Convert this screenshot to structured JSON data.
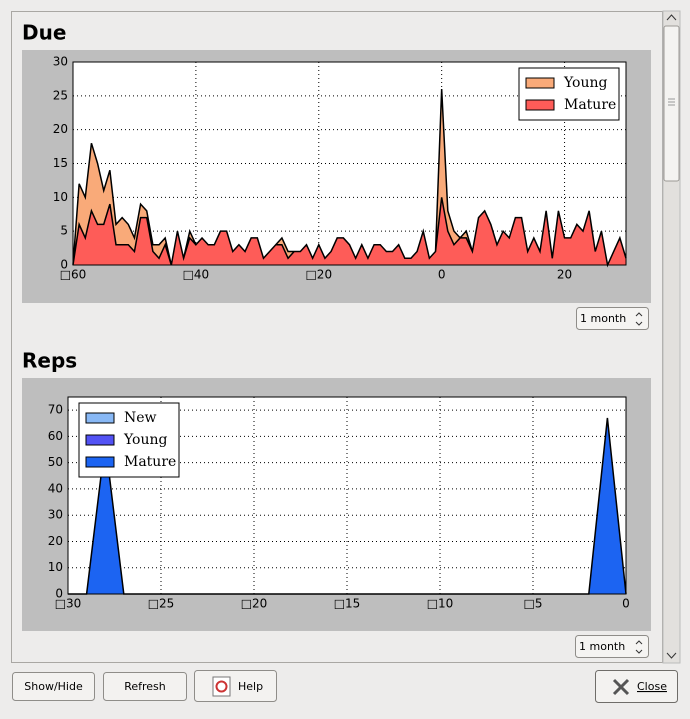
{
  "chart_data": [
    {
      "type": "area",
      "stacked": true,
      "title": "Due",
      "legend": "upper right",
      "grid": true,
      "x": [
        -60,
        -59,
        -58,
        -57,
        -56,
        -55,
        -54,
        -53,
        -52,
        -51,
        -50,
        -49,
        -48,
        -47,
        -46,
        -45,
        -44,
        -43,
        -42,
        -41,
        -40,
        -39,
        -38,
        -37,
        -36,
        -35,
        -34,
        -33,
        -32,
        -31,
        -30,
        -29,
        -28,
        -27,
        -26,
        -25,
        -24,
        -23,
        -22,
        -21,
        -20,
        -19,
        -18,
        -17,
        -16,
        -15,
        -14,
        -13,
        -12,
        -11,
        -10,
        -9,
        -8,
        -7,
        -6,
        -5,
        -4,
        -3,
        -2,
        -1,
        0,
        1,
        2,
        3,
        4,
        5,
        6,
        7,
        8,
        9,
        10,
        11,
        12,
        13,
        14,
        15,
        16,
        17,
        18,
        19,
        20,
        21,
        22,
        23,
        24,
        25,
        26,
        27,
        28,
        29,
        30
      ],
      "series": [
        {
          "name": "Mature",
          "color": "#fe5c58",
          "values": [
            0,
            6,
            4,
            8,
            6,
            6,
            9,
            3,
            3,
            3,
            2,
            7,
            7,
            2,
            1,
            3,
            0,
            5,
            1,
            4,
            3,
            4,
            3,
            3,
            5,
            5,
            2,
            3,
            2,
            4,
            4,
            1,
            2,
            3,
            3,
            1,
            2,
            2,
            3,
            1,
            3,
            1,
            2,
            4,
            4,
            3,
            1,
            3,
            1,
            3,
            3,
            2,
            2,
            3,
            1,
            1,
            2,
            5,
            1,
            2,
            10,
            5,
            3,
            4,
            4,
            2,
            7,
            8,
            6,
            3,
            5,
            4,
            7,
            7,
            2,
            4,
            2,
            8,
            1,
            8,
            4,
            4,
            6,
            5,
            8,
            2,
            5,
            0,
            2,
            4,
            1
          ]
        },
        {
          "name": "Young",
          "color": "#f9aa79",
          "values": [
            0,
            6,
            6,
            10,
            9,
            5,
            5,
            3,
            4,
            3,
            2,
            2,
            1,
            1,
            2,
            1,
            0,
            0,
            0,
            1,
            0,
            0,
            0,
            0,
            0,
            0,
            0,
            0,
            0,
            0,
            0,
            0,
            0,
            0,
            1,
            1,
            0,
            0,
            0,
            0,
            0,
            0,
            0,
            0,
            0,
            0,
            0,
            0,
            0,
            0,
            0,
            0,
            0,
            0,
            0,
            0,
            0,
            0,
            0,
            0,
            16,
            3,
            2,
            0,
            1,
            0,
            0,
            0,
            0,
            0,
            0,
            0,
            0,
            0,
            0,
            0,
            0,
            0,
            0,
            0,
            0,
            0,
            0,
            0,
            0,
            0,
            0,
            0,
            0,
            0,
            0
          ]
        }
      ],
      "legend_order": [
        "Young",
        "Mature"
      ],
      "xlim": [
        -60,
        30
      ],
      "ylim": [
        0,
        30
      ],
      "xticks": [
        {
          "value": -60,
          "label": "□60"
        },
        {
          "value": -40,
          "label": "□40"
        },
        {
          "value": -20,
          "label": "□20"
        },
        0,
        20
      ],
      "yticks": [
        0,
        5,
        10,
        15,
        20,
        25,
        30
      ],
      "period": "1 month"
    },
    {
      "type": "area",
      "stacked": true,
      "title": "Reps",
      "legend": "upper left",
      "grid": true,
      "x": [
        -30,
        -29,
        -28,
        -27,
        -26,
        -25,
        -24,
        -23,
        -22,
        -21,
        -20,
        -19,
        -18,
        -17,
        -16,
        -15,
        -14,
        -13,
        -12,
        -11,
        -10,
        -9,
        -8,
        -7,
        -6,
        -5,
        -4,
        -3,
        -2,
        -1,
        0
      ],
      "series": [
        {
          "name": "Mature",
          "color": "#1c64f2",
          "values": [
            0,
            0,
            58,
            0,
            0,
            0,
            0,
            0,
            0,
            0,
            0,
            0,
            0,
            0,
            0,
            0,
            0,
            0,
            0,
            0,
            0,
            0,
            0,
            0,
            0,
            0,
            0,
            0,
            0,
            67,
            0
          ]
        },
        {
          "name": "Young",
          "color": "#5252f4",
          "values": [
            0,
            0,
            0,
            0,
            0,
            0,
            0,
            0,
            0,
            0,
            0,
            0,
            0,
            0,
            0,
            0,
            0,
            0,
            0,
            0,
            0,
            0,
            0,
            0,
            0,
            0,
            0,
            0,
            0,
            0,
            0
          ]
        },
        {
          "name": "New",
          "color": "#88b8f5",
          "values": [
            0,
            0,
            0,
            0,
            0,
            0,
            0,
            0,
            0,
            0,
            0,
            0,
            0,
            0,
            0,
            0,
            0,
            0,
            0,
            0,
            0,
            0,
            0,
            0,
            0,
            0,
            0,
            0,
            0,
            0,
            0
          ]
        }
      ],
      "legend_order": [
        "New",
        "Young",
        "Mature"
      ],
      "xlim": [
        -30,
        0
      ],
      "ylim": [
        0,
        75
      ],
      "xticks": [
        {
          "value": -30,
          "label": "□30"
        },
        {
          "value": -25,
          "label": "□25"
        },
        {
          "value": -20,
          "label": "□20"
        },
        {
          "value": -15,
          "label": "□15"
        },
        {
          "value": -10,
          "label": "□10"
        },
        {
          "value": -5,
          "label": "□5"
        },
        0
      ],
      "yticks": [
        0,
        10,
        20,
        30,
        40,
        50,
        60,
        70
      ],
      "period": "1 month"
    }
  ],
  "buttons": {
    "show_hide": "Show/Hide",
    "refresh": "Refresh",
    "help": "Help",
    "close": "Close"
  }
}
